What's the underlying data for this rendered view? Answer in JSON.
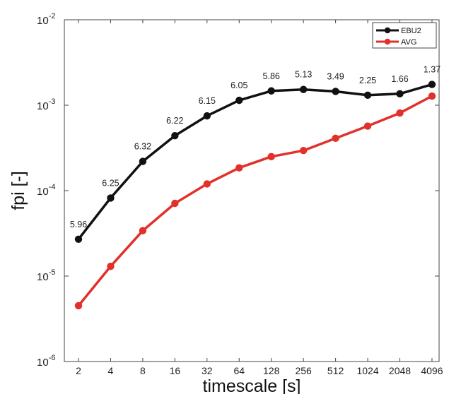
{
  "chart_data": {
    "type": "line",
    "xlabel": "timescale [s]",
    "ylabel": "fpi [-]",
    "yscale": "log",
    "ylim": [
      1e-06,
      0.01
    ],
    "categories": [
      "2",
      "4",
      "8",
      "16",
      "32",
      "64",
      "128",
      "256",
      "512",
      "1024",
      "2048",
      "4096"
    ],
    "yticks": [
      {
        "base": "10",
        "exp": "-6"
      },
      {
        "base": "10",
        "exp": "-5"
      },
      {
        "base": "10",
        "exp": "-4"
      },
      {
        "base": "10",
        "exp": "-3"
      },
      {
        "base": "10",
        "exp": "-2"
      }
    ],
    "grid": false,
    "legend_position": "top-right",
    "series": [
      {
        "name": "EBU2",
        "color": "#111111",
        "values": [
          2.7e-05,
          8.2e-05,
          0.00022,
          0.00044,
          0.00075,
          0.00114,
          0.00147,
          0.00153,
          0.00145,
          0.00131,
          0.00136,
          0.00175
        ],
        "point_labels": [
          "5.96",
          "6.25",
          "6.32",
          "6.22",
          "6.15",
          "6.05",
          "5.86",
          "5.13",
          "3.49",
          "2.25",
          "1.66",
          "1.37"
        ]
      },
      {
        "name": "AVG",
        "color": "#e2302a",
        "values": [
          4.5e-06,
          1.3e-05,
          3.4e-05,
          7.1e-05,
          0.00012,
          0.000185,
          0.00025,
          0.000295,
          0.00041,
          0.00057,
          0.00081,
          0.00128
        ]
      }
    ]
  }
}
